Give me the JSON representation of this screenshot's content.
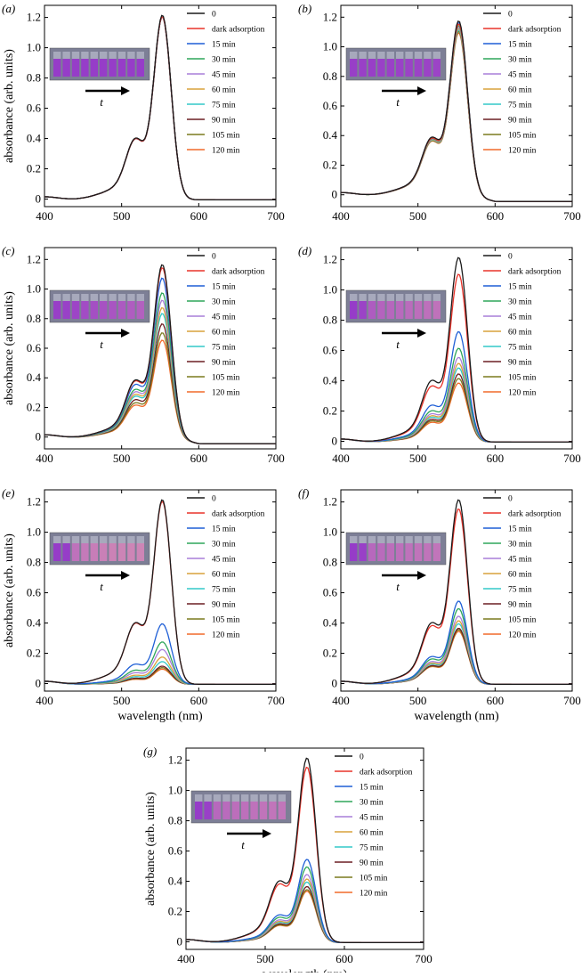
{
  "figure": {
    "xlabel": "wavelength (nm)",
    "ylabel": "absorbance (arb. units)",
    "inset_arrow_label": "t",
    "legend_labels": [
      "0",
      "dark adsorption",
      "15 min",
      "30 min",
      "45 min",
      "60 min",
      "75 min",
      "90 min",
      "105 min",
      "120 min"
    ],
    "series_colors": [
      "#1a1a1a",
      "#e8332a",
      "#1f5fd6",
      "#2ea65a",
      "#a97fd9",
      "#d9a23c",
      "#33c9c9",
      "#6b1f24",
      "#7a7a1f",
      "#f06a2a"
    ]
  },
  "chart_data": [
    {
      "type": "line",
      "panel": "(a)",
      "xlabel": "",
      "ylabel": "absorbance (arb. units)",
      "xlim": [
        400,
        700
      ],
      "ylim": [
        -0.05,
        1.28
      ],
      "xticks": [
        400,
        500,
        600,
        700
      ],
      "yticks": [
        0,
        0.2,
        0.4,
        0.6,
        0.8,
        1.0,
        1.2
      ],
      "peak_x": 553,
      "shoulder_x": 518,
      "series": [
        {
          "name": "0",
          "peak": 1.22
        },
        {
          "name": "dark adsorption",
          "peak": 1.21
        },
        {
          "name": "15 min",
          "peak": 1.21
        },
        {
          "name": "30 min",
          "peak": 1.21
        },
        {
          "name": "45 min",
          "peak": 1.21
        },
        {
          "name": "60 min",
          "peak": 1.21
        },
        {
          "name": "75 min",
          "peak": 1.21
        },
        {
          "name": "90 min",
          "peak": 1.21
        },
        {
          "name": "105 min",
          "peak": 1.21
        },
        {
          "name": "120 min",
          "peak": 1.21
        }
      ]
    },
    {
      "type": "line",
      "panel": "(b)",
      "xlabel": "",
      "ylabel": "",
      "xlim": [
        400,
        700
      ],
      "ylim": [
        -0.08,
        1.28
      ],
      "xticks": [
        400,
        500,
        600,
        700
      ],
      "yticks": [
        0,
        0.2,
        0.4,
        0.6,
        0.8,
        1.0,
        1.2
      ],
      "peak_x": 553,
      "shoulder_x": 518,
      "series": [
        {
          "name": "0",
          "peak": 1.18
        },
        {
          "name": "dark adsorption",
          "peak": 1.16
        },
        {
          "name": "15 min",
          "peak": 1.17
        },
        {
          "name": "30 min",
          "peak": 1.15
        },
        {
          "name": "45 min",
          "peak": 1.14
        },
        {
          "name": "60 min",
          "peak": 1.13
        },
        {
          "name": "75 min",
          "peak": 1.12
        },
        {
          "name": "90 min",
          "peak": 1.12
        },
        {
          "name": "105 min",
          "peak": 1.11
        },
        {
          "name": "120 min",
          "peak": 1.1
        }
      ]
    },
    {
      "type": "line",
      "panel": "(c)",
      "xlabel": "",
      "ylabel": "absorbance (arb. units)",
      "xlim": [
        400,
        700
      ],
      "ylim": [
        -0.08,
        1.28
      ],
      "xticks": [
        400,
        500,
        600,
        700
      ],
      "yticks": [
        0,
        0.2,
        0.4,
        0.6,
        0.8,
        1.0,
        1.2
      ],
      "peak_x": 553,
      "shoulder_x": 518,
      "series": [
        {
          "name": "0",
          "peak": 1.17
        },
        {
          "name": "dark adsorption",
          "peak": 1.15
        },
        {
          "name": "15 min",
          "peak": 1.08
        },
        {
          "name": "30 min",
          "peak": 0.98
        },
        {
          "name": "45 min",
          "peak": 0.93
        },
        {
          "name": "60 min",
          "peak": 0.88
        },
        {
          "name": "75 min",
          "peak": 0.84
        },
        {
          "name": "90 min",
          "peak": 0.77
        },
        {
          "name": "105 min",
          "peak": 0.71
        },
        {
          "name": "120 min",
          "peak": 0.66
        }
      ]
    },
    {
      "type": "line",
      "panel": "(d)",
      "xlabel": "",
      "ylabel": "",
      "xlim": [
        400,
        700
      ],
      "ylim": [
        -0.05,
        1.28
      ],
      "xticks": [
        400,
        500,
        600,
        700
      ],
      "yticks": [
        0,
        0.2,
        0.4,
        0.6,
        0.8,
        1.0,
        1.2
      ],
      "peak_x": 553,
      "shoulder_x": 518,
      "series": [
        {
          "name": "0",
          "peak": 1.22
        },
        {
          "name": "dark adsorption",
          "peak": 1.11
        },
        {
          "name": "15 min",
          "peak": 0.73
        },
        {
          "name": "30 min",
          "peak": 0.62
        },
        {
          "name": "45 min",
          "peak": 0.56
        },
        {
          "name": "60 min",
          "peak": 0.52
        },
        {
          "name": "75 min",
          "peak": 0.49
        },
        {
          "name": "90 min",
          "peak": 0.45
        },
        {
          "name": "105 min",
          "peak": 0.42
        },
        {
          "name": "120 min",
          "peak": 0.39
        }
      ]
    },
    {
      "type": "line",
      "panel": "(e)",
      "xlabel": "wavelength (nm)",
      "ylabel": "absorbance (arb. units)",
      "xlim": [
        400,
        700
      ],
      "ylim": [
        -0.05,
        1.28
      ],
      "xticks": [
        400,
        500,
        600,
        700
      ],
      "yticks": [
        0,
        0.2,
        0.4,
        0.6,
        0.8,
        1.0,
        1.2
      ],
      "peak_x": 553,
      "shoulder_x": 518,
      "series": [
        {
          "name": "0",
          "peak": 1.22
        },
        {
          "name": "dark adsorption",
          "peak": 1.21
        },
        {
          "name": "15 min",
          "peak": 0.4
        },
        {
          "name": "30 min",
          "peak": 0.28
        },
        {
          "name": "45 min",
          "peak": 0.23
        },
        {
          "name": "60 min",
          "peak": 0.18
        },
        {
          "name": "75 min",
          "peak": 0.15
        },
        {
          "name": "90 min",
          "peak": 0.12
        },
        {
          "name": "105 min",
          "peak": 0.11
        },
        {
          "name": "120 min",
          "peak": 0.1
        }
      ]
    },
    {
      "type": "line",
      "panel": "(f)",
      "xlabel": "wavelength (nm)",
      "ylabel": "",
      "xlim": [
        400,
        700
      ],
      "ylim": [
        -0.05,
        1.28
      ],
      "xticks": [
        400,
        500,
        600,
        700
      ],
      "yticks": [
        0,
        0.2,
        0.4,
        0.6,
        0.8,
        1.0,
        1.2
      ],
      "peak_x": 553,
      "shoulder_x": 518,
      "series": [
        {
          "name": "0",
          "peak": 1.22
        },
        {
          "name": "dark adsorption",
          "peak": 1.16
        },
        {
          "name": "15 min",
          "peak": 0.55
        },
        {
          "name": "30 min",
          "peak": 0.5
        },
        {
          "name": "45 min",
          "peak": 0.45
        },
        {
          "name": "60 min",
          "peak": 0.42
        },
        {
          "name": "75 min",
          "peak": 0.4
        },
        {
          "name": "90 min",
          "peak": 0.37
        },
        {
          "name": "105 min",
          "peak": 0.36
        },
        {
          "name": "120 min",
          "peak": 0.35
        }
      ]
    },
    {
      "type": "line",
      "panel": "(g)",
      "xlabel": "wavelength (nm)",
      "ylabel": "absorbance (arb. units)",
      "xlim": [
        400,
        700
      ],
      "ylim": [
        -0.05,
        1.28
      ],
      "xticks": [
        400,
        500,
        600,
        700
      ],
      "yticks": [
        0,
        0.2,
        0.4,
        0.6,
        0.8,
        1.0,
        1.2
      ],
      "peak_x": 553,
      "shoulder_x": 518,
      "series": [
        {
          "name": "0",
          "peak": 1.22
        },
        {
          "name": "dark adsorption",
          "peak": 1.16
        },
        {
          "name": "15 min",
          "peak": 0.55
        },
        {
          "name": "30 min",
          "peak": 0.5
        },
        {
          "name": "45 min",
          "peak": 0.45
        },
        {
          "name": "60 min",
          "peak": 0.42
        },
        {
          "name": "75 min",
          "peak": 0.4
        },
        {
          "name": "90 min",
          "peak": 0.37
        },
        {
          "name": "105 min",
          "peak": 0.35
        },
        {
          "name": "120 min",
          "peak": 0.34
        }
      ]
    }
  ]
}
